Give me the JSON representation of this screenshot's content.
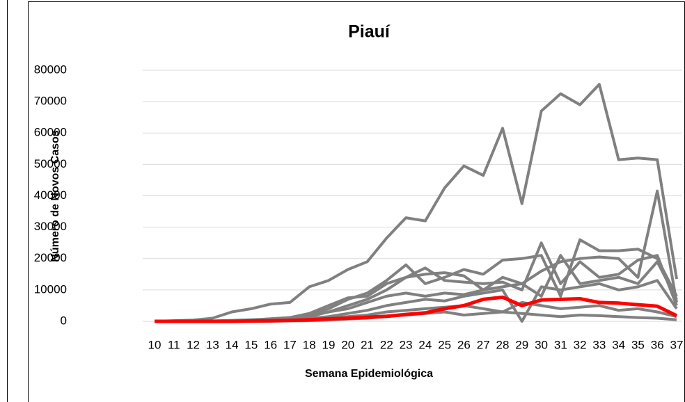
{
  "chart_data": {
    "type": "line",
    "title": "Piauí",
    "x_label": "Semana Epidemiológica",
    "y_label": "Número de Novos Casos",
    "categories": [
      "10",
      "11",
      "12",
      "13",
      "14",
      "15",
      "16",
      "17",
      "18",
      "19",
      "20",
      "21",
      "22",
      "23",
      "24",
      "25",
      "26",
      "27",
      "28",
      "29",
      "30",
      "31",
      "32",
      "33",
      "34",
      "35",
      "36",
      "37"
    ],
    "ylim": [
      0,
      80000
    ],
    "yticks": [
      0,
      10000,
      20000,
      30000,
      40000,
      50000,
      60000,
      70000,
      80000
    ],
    "grid": true,
    "series": [
      {
        "color": "#808080",
        "values": [
          0,
          200,
          400,
          1000,
          3000,
          4000,
          5500,
          6000,
          11000,
          13000,
          16500,
          19000,
          26500,
          33000,
          32000,
          42500,
          49500,
          46500,
          61500,
          37500,
          67000,
          72500,
          69000,
          75500,
          51500,
          52000,
          51500,
          13500
        ]
      },
      {
        "color": "#808080",
        "values": [
          0,
          0,
          0,
          100,
          300,
          500,
          800,
          1200,
          2000,
          4000,
          7000,
          9000,
          13000,
          18000,
          12000,
          14000,
          16500,
          15000,
          19500,
          20000,
          21000,
          8000,
          26000,
          22500,
          22500,
          23000,
          20000,
          8000
        ]
      },
      {
        "color": "#808080",
        "values": [
          0,
          0,
          0,
          0,
          100,
          200,
          400,
          800,
          1500,
          3000,
          5000,
          7000,
          10000,
          14000,
          15000,
          15500,
          14500,
          10000,
          14000,
          12000,
          16000,
          19000,
          20000,
          20500,
          20000,
          14000,
          41500,
          6000
        ]
      },
      {
        "color": "#808080",
        "values": [
          0,
          0,
          0,
          100,
          200,
          400,
          800,
          1200,
          2500,
          5000,
          7500,
          8000,
          12000,
          14000,
          17000,
          13000,
          12500,
          12000,
          12500,
          10000,
          25000,
          12000,
          19000,
          14000,
          15000,
          19500,
          21000,
          5000
        ]
      },
      {
        "color": "#808080",
        "values": [
          0,
          0,
          0,
          0,
          100,
          300,
          600,
          1000,
          1800,
          3000,
          4000,
          6000,
          8000,
          9000,
          8000,
          9000,
          8500,
          10000,
          11000,
          12000,
          8000,
          21000,
          12000,
          13000,
          14000,
          12000,
          19000,
          7000
        ]
      },
      {
        "color": "#808080",
        "values": [
          0,
          0,
          0,
          0,
          0,
          100,
          200,
          500,
          900,
          1500,
          2500,
          3500,
          5000,
          6000,
          7000,
          6500,
          8000,
          9000,
          10000,
          0,
          11000,
          10000,
          11000,
          12000,
          10000,
          11000,
          13000,
          4000
        ]
      },
      {
        "color": "#808080",
        "values": [
          0,
          0,
          0,
          0,
          0,
          0,
          100,
          300,
          600,
          1000,
          1500,
          2000,
          3000,
          3500,
          4000,
          4500,
          5000,
          4000,
          3000,
          6000,
          5000,
          4000,
          4500,
          5000,
          3500,
          4000,
          3000,
          1500
        ]
      },
      {
        "color": "#808080",
        "values": [
          0,
          0,
          0,
          0,
          0,
          0,
          0,
          100,
          200,
          400,
          700,
          1000,
          1500,
          2000,
          2500,
          3000,
          2000,
          2500,
          3000,
          2500,
          2000,
          1500,
          2000,
          1800,
          1500,
          1200,
          1000,
          500
        ]
      },
      {
        "color": "#ff0000",
        "values": [
          0,
          0,
          0,
          0,
          0,
          100,
          200,
          300,
          500,
          800,
          1000,
          1300,
          1600,
          2200,
          2700,
          4000,
          5000,
          7000,
          7700,
          5000,
          6800,
          7000,
          7200,
          6000,
          5800,
          5300,
          4800,
          1800
        ]
      }
    ]
  }
}
